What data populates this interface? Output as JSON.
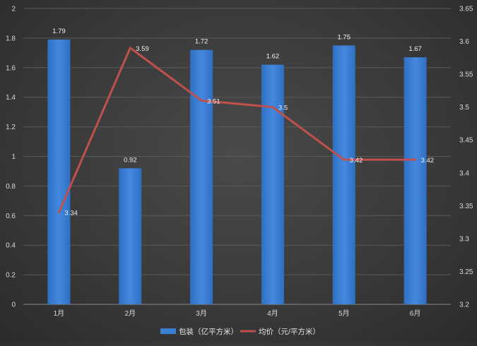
{
  "chart_data": {
    "type": "bar",
    "categories": [
      "1月",
      "2月",
      "3月",
      "4月",
      "5月",
      "6月"
    ],
    "series": [
      {
        "name": "包装（亿平方米）",
        "type": "bar",
        "axis": "left",
        "values": [
          1.79,
          0.92,
          1.72,
          1.62,
          1.75,
          1.67
        ],
        "labels": [
          "1.79",
          "0.92",
          "1.72",
          "1.62",
          "1.75",
          "1.67"
        ],
        "color": "#3a7fd5"
      },
      {
        "name": "均价（元/平方米）",
        "type": "line",
        "axis": "right",
        "values": [
          3.34,
          3.59,
          3.51,
          3.5,
          3.42,
          3.42
        ],
        "labels": [
          "3.34",
          "3.59",
          "3.51",
          "3.5",
          "3.42",
          "3.42"
        ],
        "color": "#c0504d"
      }
    ],
    "y_left": {
      "min": 0,
      "max": 2,
      "ticks": [
        0,
        0.2,
        0.4,
        0.6,
        0.8,
        1,
        1.2,
        1.4,
        1.6,
        1.8,
        2
      ],
      "tick_labels": [
        "0",
        "0.2",
        "0.4",
        "0.6",
        "0.8",
        "1",
        "1.2",
        "1.4",
        "1.6",
        "1.8",
        "2"
      ]
    },
    "y_right": {
      "min": 3.2,
      "max": 3.65,
      "ticks": [
        3.2,
        3.25,
        3.3,
        3.35,
        3.4,
        3.45,
        3.5,
        3.55,
        3.6,
        3.65
      ],
      "tick_labels": [
        "3.2",
        "3.25",
        "3.3",
        "3.35",
        "3.4",
        "3.45",
        "3.5",
        "3.55",
        "3.6",
        "3.65"
      ]
    },
    "grid": true,
    "legend": "bottom"
  }
}
